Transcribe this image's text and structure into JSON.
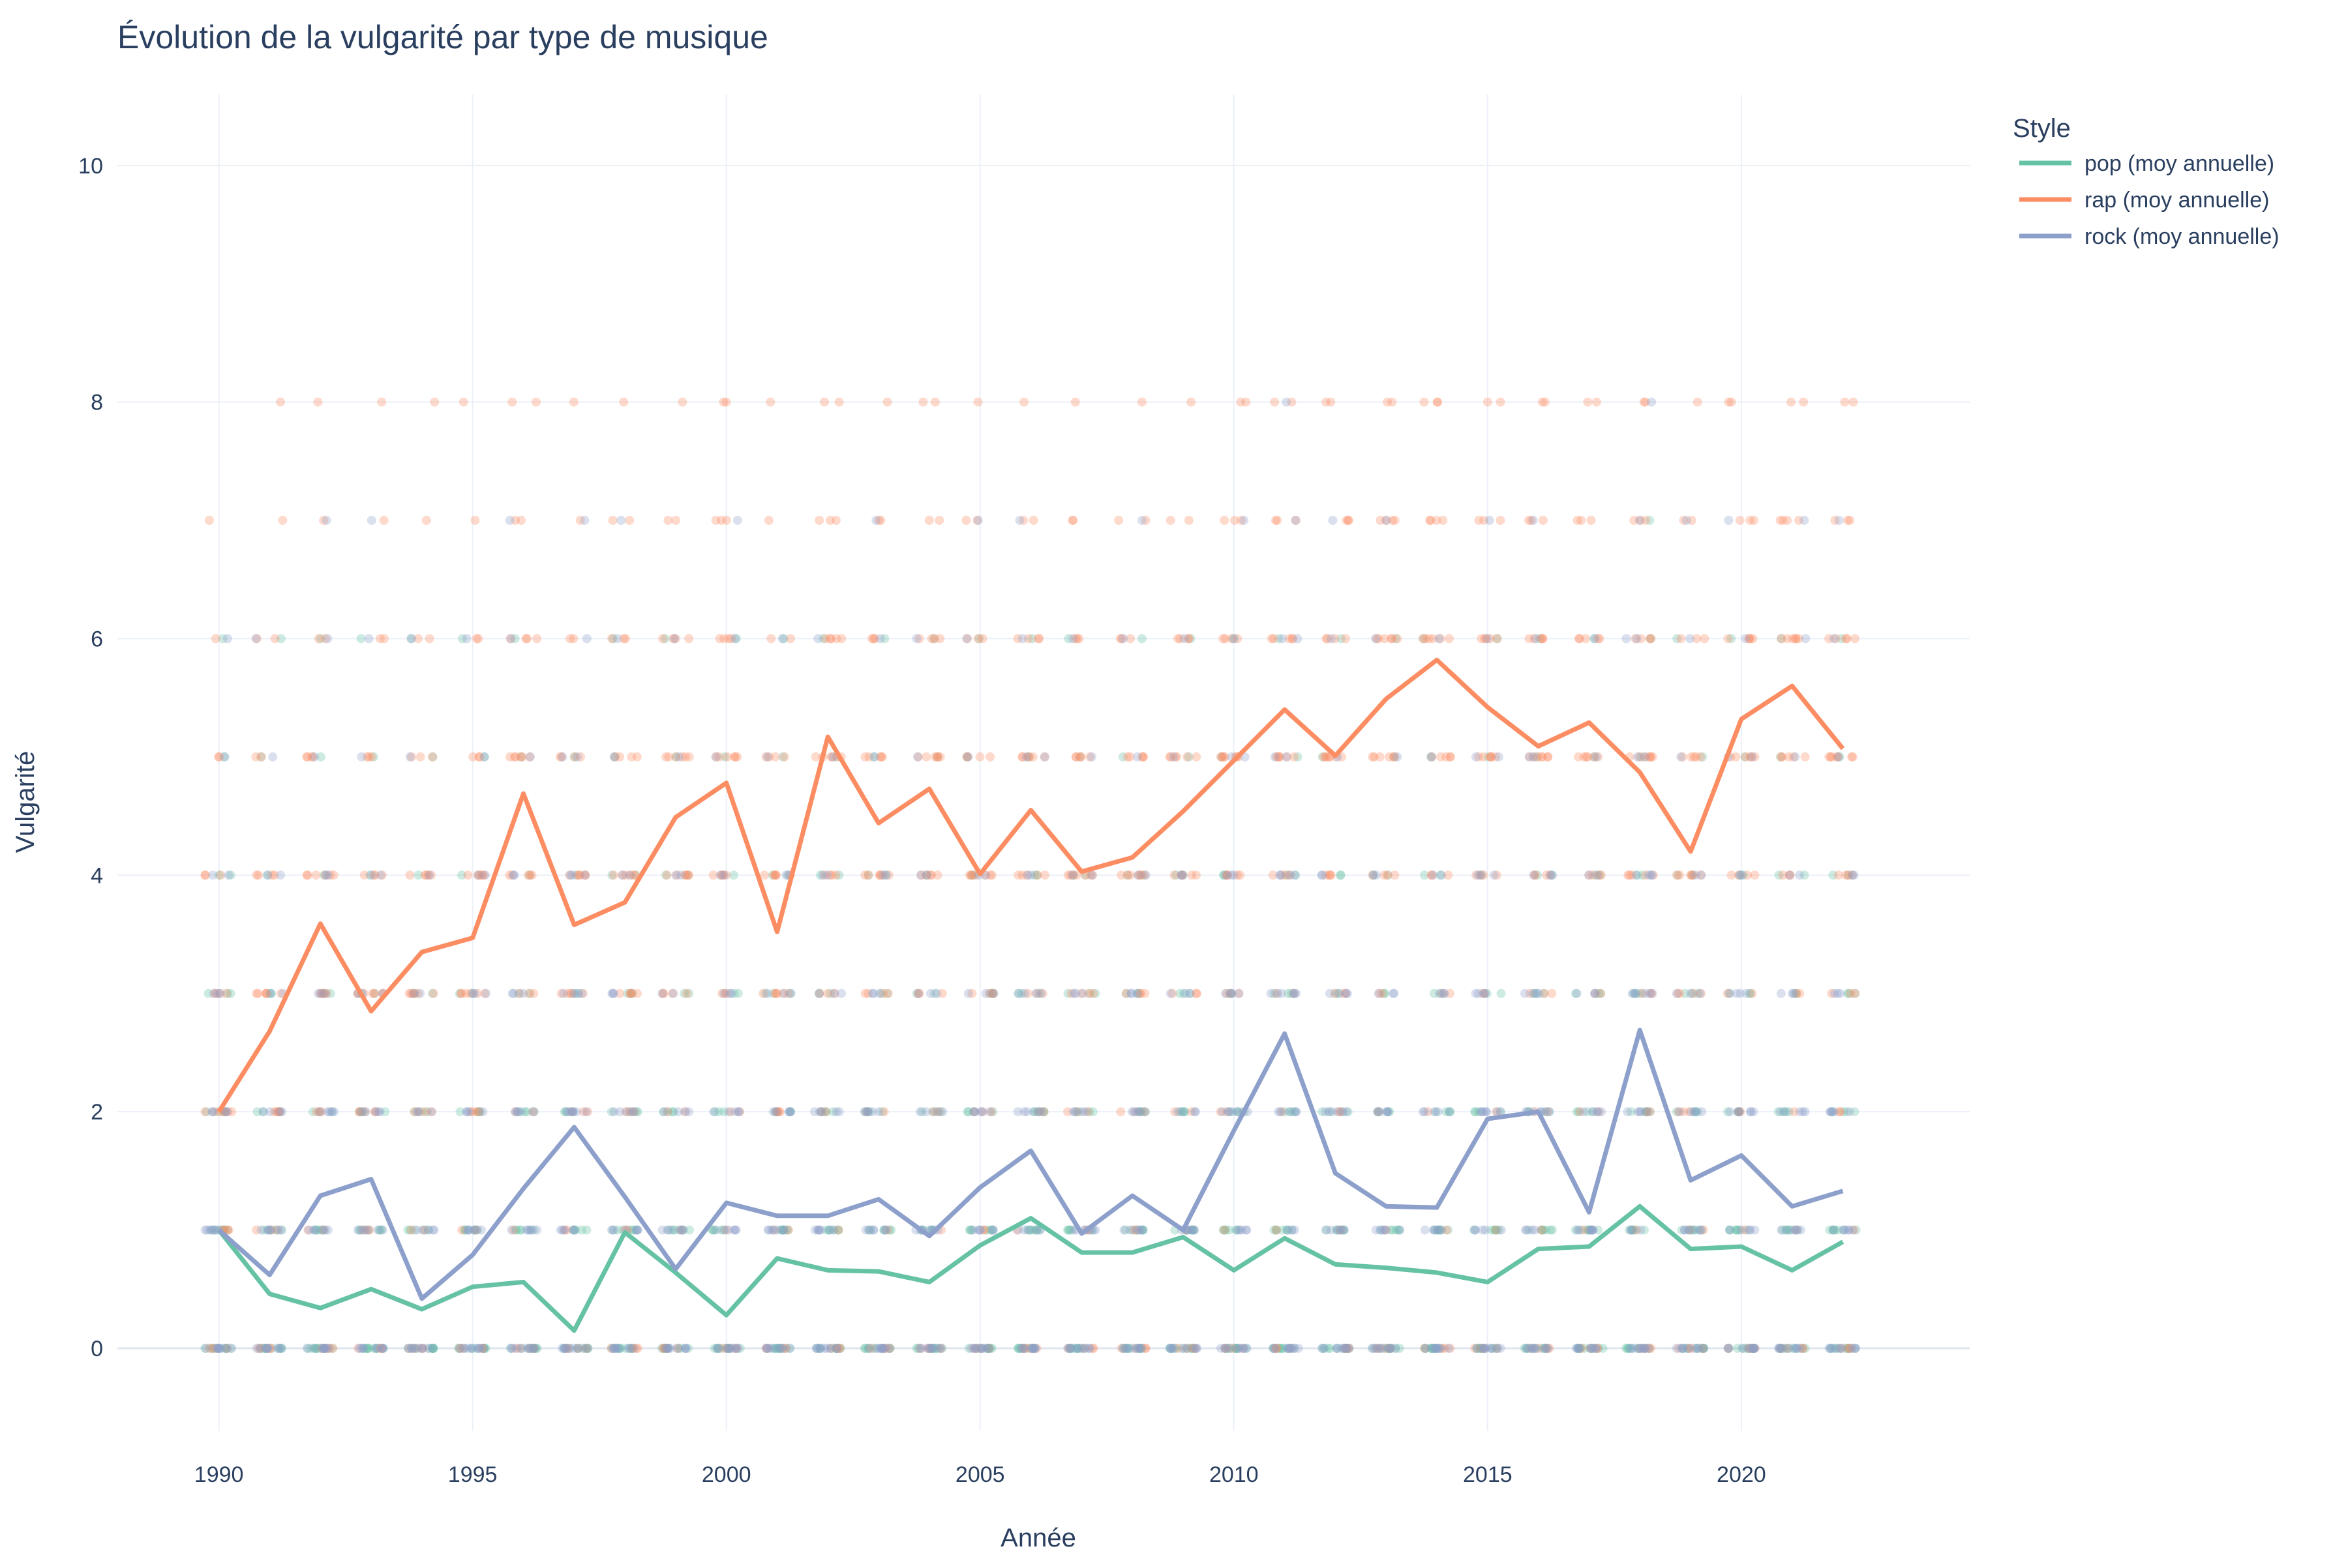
{
  "chart_data": {
    "type": "line",
    "title": "Évolution de la vulgarité par type de musique",
    "xlabel": "Année",
    "ylabel": "Vulgarité",
    "xlim": [
      1988,
      2024.5
    ],
    "ylim": [
      -0.7,
      10.6
    ],
    "xticks": [
      1990,
      1995,
      2000,
      2005,
      2010,
      2015,
      2020
    ],
    "yticks": [
      0,
      2,
      4,
      6,
      8,
      10
    ],
    "grid": true,
    "legend_title": "Style",
    "legend_position": "top-right",
    "x": [
      1990,
      1991,
      1992,
      1993,
      1994,
      1995,
      1996,
      1997,
      1998,
      1999,
      2000,
      2001,
      2002,
      2003,
      2004,
      2005,
      2006,
      2007,
      2008,
      2009,
      2010,
      2011,
      2012,
      2013,
      2014,
      2015,
      2016,
      2017,
      2018,
      2019,
      2020,
      2021,
      2022
    ],
    "series": [
      {
        "name": "pop (moy annuelle)",
        "color": "#66c2a5",
        "values": [
          1.0,
          0.46,
          0.34,
          0.5,
          0.33,
          0.52,
          0.56,
          0.15,
          0.98,
          0.64,
          0.28,
          0.76,
          0.66,
          0.65,
          0.56,
          0.87,
          1.1,
          0.81,
          0.81,
          0.94,
          0.66,
          0.93,
          0.71,
          0.68,
          0.64,
          0.56,
          0.84,
          0.86,
          1.2,
          0.84,
          0.86,
          0.66,
          0.9
        ]
      },
      {
        "name": "rap (moy annuelle)",
        "color": "#fc8d62",
        "values": [
          2.0,
          2.68,
          3.59,
          2.85,
          3.35,
          3.47,
          4.69,
          3.58,
          3.77,
          4.49,
          4.78,
          3.52,
          5.17,
          4.44,
          4.73,
          4.01,
          4.55,
          4.03,
          4.15,
          4.54,
          4.97,
          5.4,
          5.01,
          5.49,
          5.82,
          5.42,
          5.09,
          5.29,
          4.87,
          4.2,
          5.32,
          5.6,
          5.07
        ]
      },
      {
        "name": "rock (moy annuelle)",
        "color": "#8da0cb",
        "values": [
          1.0,
          0.62,
          1.29,
          1.43,
          0.42,
          0.79,
          1.35,
          1.87,
          1.28,
          0.67,
          1.23,
          1.12,
          1.12,
          1.26,
          0.95,
          1.36,
          1.67,
          0.97,
          1.29,
          1.0,
          1.84,
          2.66,
          1.48,
          1.2,
          1.19,
          1.94,
          2.0,
          1.15,
          2.69,
          1.42,
          1.63,
          1.2,
          1.33
        ]
      }
    ]
  }
}
